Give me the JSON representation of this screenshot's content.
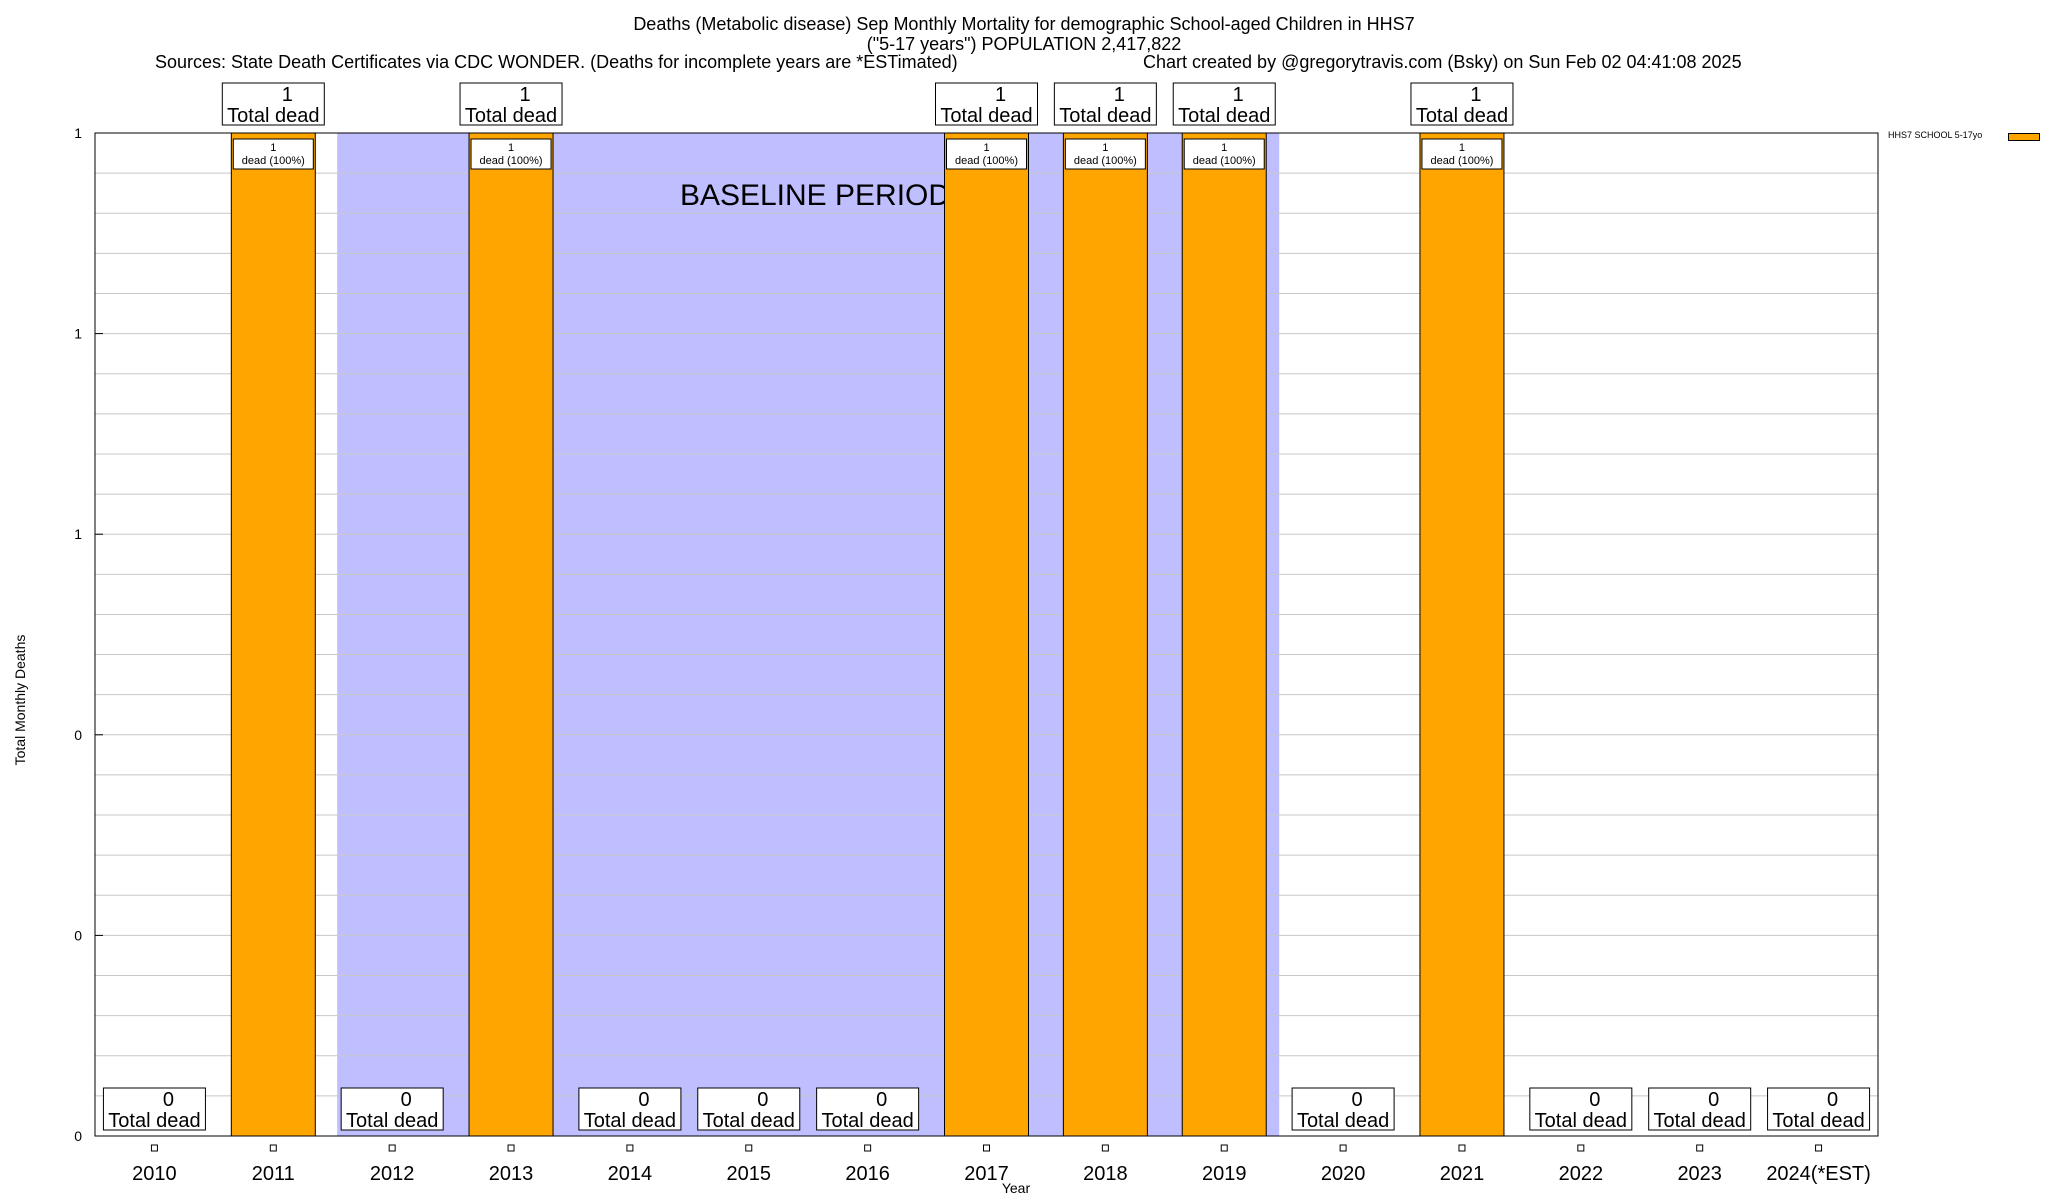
{
  "header": {
    "title_line1": "Deaths (Metabolic disease) Sep Monthly Mortality for demographic School-aged Children in HHS7",
    "title_line2": "(\"5-17 years\") POPULATION 2,417,822",
    "sources": "Sources: State Death Certificates via CDC WONDER. (Deaths for incomplete years are *ESTimated)",
    "credit": "Chart created by @gregorytravis.com (Bsky) on Sun Feb 02 04:41:08 2025"
  },
  "colors": {
    "bar": "#ffa500",
    "baseline": "#bfbfff",
    "grid": "#c8c8c8"
  },
  "chart_data": {
    "type": "bar",
    "title": "Deaths (Metabolic disease) Sep Monthly Mortality for demographic School-aged Children in HHS7",
    "xlabel": "Year",
    "ylabel": "Total Monthly Deaths",
    "ylim": [
      0,
      1
    ],
    "y_tick_labels": [
      "0",
      "0",
      "0",
      "1",
      "1",
      "1"
    ],
    "categories": [
      "2010",
      "2011",
      "2012",
      "2013",
      "2014",
      "2015",
      "2016",
      "2017",
      "2018",
      "2019",
      "2020",
      "2021",
      "2022",
      "2023",
      "2024(*EST)"
    ],
    "series": [
      {
        "name": "HHS7 SCHOOL 5-17yo",
        "values": [
          0,
          1,
          0,
          1,
          0,
          0,
          0,
          1,
          1,
          1,
          0,
          1,
          0,
          0,
          0
        ]
      }
    ],
    "total_label_text": "Total dead",
    "inner_label_text": "dead (100%)",
    "baseline_period": {
      "label": "BASELINE PERIOD",
      "from": "2012",
      "to": "2019"
    },
    "legend": [
      "HHS7 SCHOOL 5-17yo"
    ]
  }
}
